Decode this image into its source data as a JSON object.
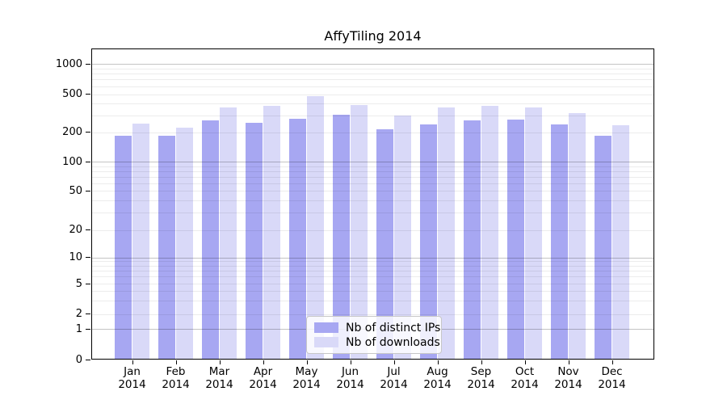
{
  "title": "AffyTiling 2014",
  "chart_data": {
    "type": "bar",
    "title": "AffyTiling 2014",
    "categories": [
      "Jan",
      "Feb",
      "Mar",
      "Apr",
      "May",
      "Jun",
      "Jul",
      "Aug",
      "Sep",
      "Oct",
      "Nov",
      "Dec"
    ],
    "category_year": "2014",
    "series": [
      {
        "name": "Nb of distinct IPs",
        "color": "#a7a7f2",
        "values": [
          185,
          185,
          266,
          249,
          277,
          303,
          214,
          239,
          265,
          270,
          243,
          183
        ]
      },
      {
        "name": "Nb of downloads",
        "color": "#d9d9f8",
        "values": [
          248,
          224,
          365,
          374,
          473,
          386,
          297,
          365,
          375,
          360,
          318,
          235
        ]
      }
    ],
    "yticks": [
      0,
      1,
      2,
      5,
      10,
      20,
      50,
      100,
      200,
      500,
      1000
    ],
    "ylim": [
      0,
      1400
    ],
    "y_scale": "log-like (1-2-5 labeled ticks with 0 baseline)",
    "grid": "horizontal major + minor log gridlines drawn over bars",
    "legend_position": "inside bottom-center",
    "colors": {
      "major_grid": "rgba(0,0,0,0.23)",
      "minor_grid": "rgba(0,0,0,0.075)",
      "spine": "#000000",
      "background": "#ffffff"
    }
  }
}
